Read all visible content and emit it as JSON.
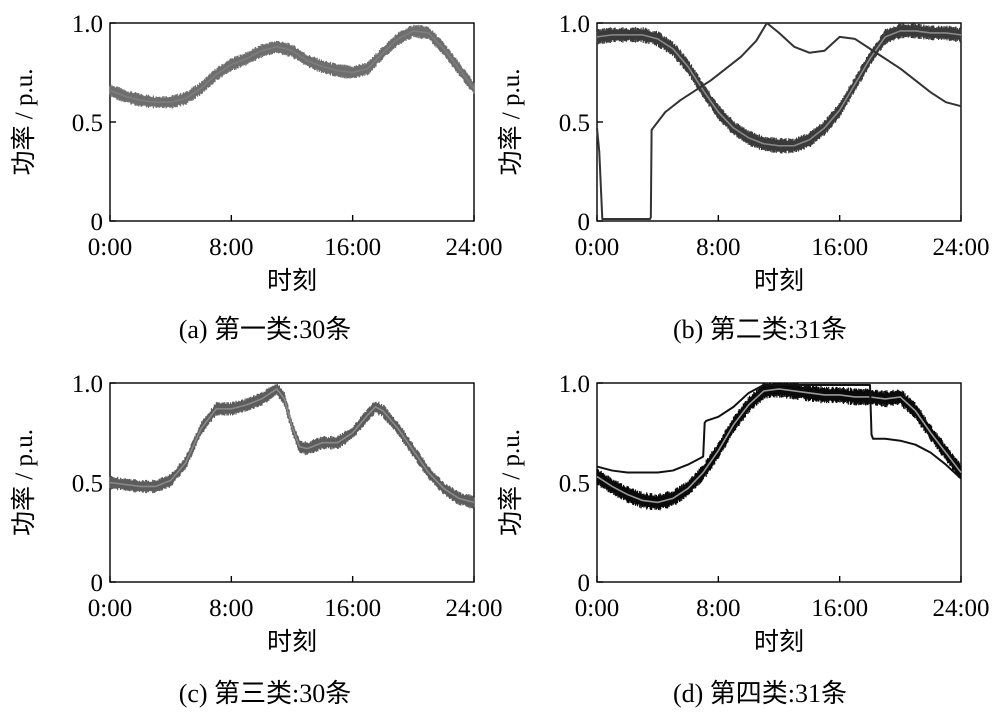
{
  "figure": {
    "panels": [
      {
        "caption": "(a)  第一类:30条"
      },
      {
        "caption": "(b)  第二类:31条"
      },
      {
        "caption": "(c)  第三类:30条"
      },
      {
        "caption": "(d)  第四类:31条"
      }
    ]
  },
  "chart_data": [
    {
      "type": "line",
      "caption": "(a)  第一类:30条",
      "xlabel": "时刻",
      "ylabel": "功率 / p.u.",
      "x_ticks": [
        "0:00",
        "8:00",
        "16:00",
        "24:00"
      ],
      "y_ticks": [
        "0",
        "0.5",
        "1.0"
      ],
      "xlim": [
        0,
        24
      ],
      "ylim": [
        0,
        1
      ],
      "series": [
        {
          "style": "band",
          "color": "#6e6e6e",
          "center_color": "#7d7d7d",
          "band_halfwidth": 0.028,
          "x": [
            0,
            1,
            2,
            3,
            4,
            5,
            6,
            7,
            8,
            9,
            10,
            11,
            12,
            13,
            14,
            15,
            16,
            17,
            18,
            19,
            20,
            21,
            22,
            23,
            24
          ],
          "y": [
            0.66,
            0.63,
            0.61,
            0.6,
            0.6,
            0.62,
            0.67,
            0.74,
            0.79,
            0.82,
            0.86,
            0.88,
            0.86,
            0.81,
            0.78,
            0.76,
            0.75,
            0.77,
            0.85,
            0.92,
            0.96,
            0.95,
            0.87,
            0.77,
            0.67
          ]
        }
      ]
    },
    {
      "type": "line",
      "caption": "(b)  第二类:31条",
      "xlabel": "时刻",
      "ylabel": "功率 / p.u.",
      "x_ticks": [
        "0:00",
        "8:00",
        "16:00",
        "24:00"
      ],
      "y_ticks": [
        "0",
        "0.5",
        "1.0"
      ],
      "xlim": [
        0,
        24
      ],
      "ylim": [
        0,
        1
      ],
      "series": [
        {
          "style": "band",
          "color": "#3a3a3a",
          "center_color": "#8a8a8a",
          "band_halfwidth": 0.032,
          "x": [
            0,
            1,
            2,
            3,
            4,
            5,
            6,
            7,
            8,
            9,
            10,
            11,
            12,
            13,
            14,
            15,
            16,
            17,
            18,
            19,
            20,
            21,
            22,
            23,
            24
          ],
          "y": [
            0.93,
            0.94,
            0.94,
            0.94,
            0.92,
            0.87,
            0.78,
            0.66,
            0.55,
            0.47,
            0.42,
            0.39,
            0.38,
            0.38,
            0.41,
            0.47,
            0.56,
            0.69,
            0.82,
            0.93,
            0.96,
            0.96,
            0.95,
            0.95,
            0.94
          ]
        },
        {
          "style": "line",
          "color": "#333333",
          "x": [
            0,
            0.15,
            0.35,
            3.5,
            3.55,
            3.6,
            4.5,
            5.5,
            6.5,
            7.5,
            8.5,
            9.5,
            10.5,
            11.2,
            12,
            13,
            14,
            15,
            16,
            17,
            18,
            19,
            20,
            21,
            22,
            23,
            24
          ],
          "y": [
            0.47,
            0.35,
            0.01,
            0.01,
            0.02,
            0.46,
            0.55,
            0.61,
            0.66,
            0.71,
            0.77,
            0.83,
            0.91,
            1.0,
            0.95,
            0.88,
            0.85,
            0.86,
            0.93,
            0.92,
            0.87,
            0.82,
            0.77,
            0.71,
            0.65,
            0.6,
            0.58
          ]
        }
      ]
    },
    {
      "type": "line",
      "caption": "(c)  第三类:30条",
      "xlabel": "时刻",
      "ylabel": "功率 / p.u.",
      "x_ticks": [
        "0:00",
        "8:00",
        "16:00",
        "24:00"
      ],
      "y_ticks": [
        "0",
        "0.5",
        "1.0"
      ],
      "xlim": [
        0,
        24
      ],
      "ylim": [
        0,
        1
      ],
      "series": [
        {
          "style": "band",
          "color": "#5c5c5c",
          "center_color": "#8a8a8a",
          "band_halfwidth": 0.028,
          "x": [
            0,
            1,
            2,
            3,
            4,
            5,
            6,
            7,
            8,
            9,
            10,
            11,
            11.5,
            12,
            12.5,
            13,
            14,
            15,
            16,
            17,
            17.5,
            18,
            19,
            20,
            21,
            22,
            23,
            24
          ],
          "y": [
            0.5,
            0.49,
            0.48,
            0.48,
            0.51,
            0.6,
            0.77,
            0.87,
            0.87,
            0.89,
            0.92,
            0.97,
            0.92,
            0.78,
            0.68,
            0.67,
            0.7,
            0.7,
            0.75,
            0.84,
            0.88,
            0.86,
            0.77,
            0.66,
            0.55,
            0.47,
            0.42,
            0.4
          ]
        }
      ]
    },
    {
      "type": "line",
      "caption": "(d)  第四类:31条",
      "xlabel": "时刻",
      "ylabel": "功率 / p.u.",
      "x_ticks": [
        "0:00",
        "8:00",
        "16:00",
        "24:00"
      ],
      "y_ticks": [
        "0",
        "0.5",
        "1.0"
      ],
      "xlim": [
        0,
        24
      ],
      "ylim": [
        0,
        1
      ],
      "series": [
        {
          "style": "band",
          "color": "#0a0a0a",
          "center_color": "#9a9a9a",
          "band_halfwidth": 0.035,
          "x": [
            0,
            1,
            2,
            3,
            4,
            5,
            6,
            7,
            8,
            9,
            10,
            11,
            12,
            13,
            14,
            15,
            16,
            17,
            18,
            19,
            20,
            21,
            22,
            23,
            24
          ],
          "y": [
            0.53,
            0.48,
            0.44,
            0.41,
            0.4,
            0.42,
            0.47,
            0.55,
            0.66,
            0.79,
            0.89,
            0.96,
            0.97,
            0.96,
            0.95,
            0.94,
            0.94,
            0.93,
            0.93,
            0.92,
            0.93,
            0.86,
            0.75,
            0.65,
            0.55
          ]
        },
        {
          "style": "line",
          "color": "#111111",
          "x": [
            0,
            1,
            2,
            3,
            4,
            5,
            6,
            7,
            7.1,
            7.2,
            8,
            9,
            10,
            11,
            12,
            13,
            14,
            15,
            16,
            17,
            18,
            18.1,
            18.2,
            19,
            20,
            21,
            22,
            23,
            24
          ],
          "y": [
            0.58,
            0.56,
            0.55,
            0.55,
            0.55,
            0.56,
            0.59,
            0.63,
            0.8,
            0.81,
            0.83,
            0.88,
            0.95,
            0.99,
            0.99,
            0.99,
            0.99,
            0.99,
            0.99,
            0.99,
            0.99,
            0.74,
            0.72,
            0.72,
            0.71,
            0.69,
            0.65,
            0.59,
            0.52
          ]
        }
      ]
    }
  ]
}
